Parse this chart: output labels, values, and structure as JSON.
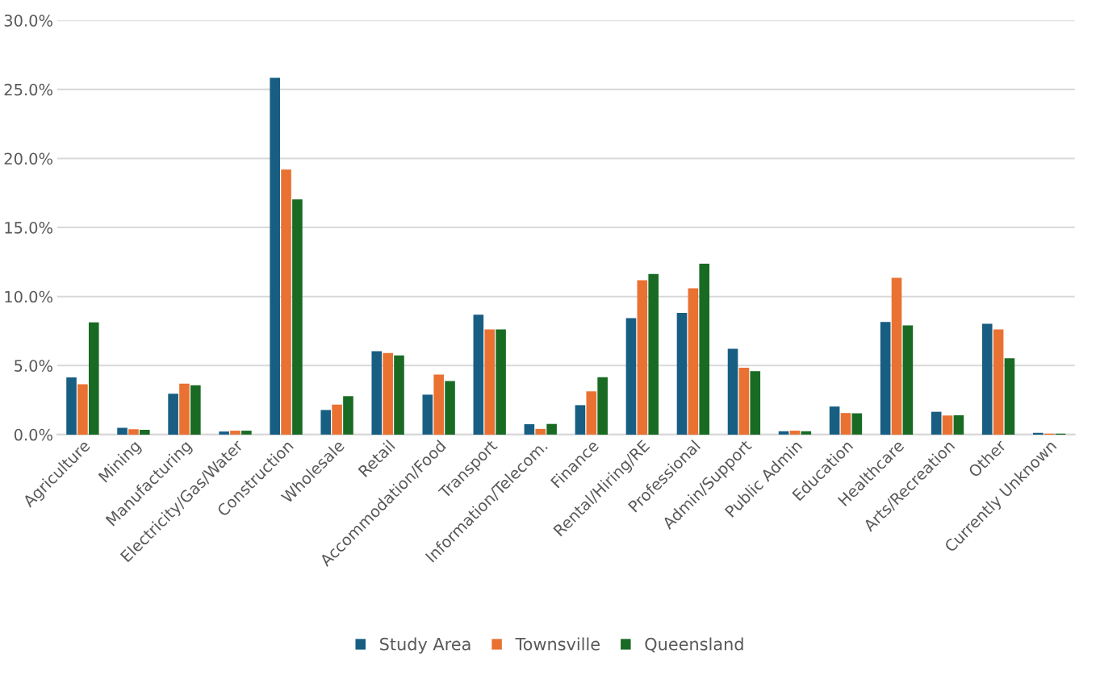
{
  "chart_data": {
    "type": "bar",
    "categories": [
      "Agriculture",
      "Mining",
      "Manufacturing",
      "Electricity/Gas/Water",
      "Construction",
      "Wholesale",
      "Retail",
      "Accommodation/Food",
      "Transport",
      "Information/Telecom.",
      "Finance",
      "Rental/Hiring/RE",
      "Professional",
      "Admin/Support",
      "Public Admin",
      "Education",
      "Healthcare",
      "Arts/Recreation",
      "Other",
      "Currently Unknown"
    ],
    "series": [
      {
        "name": "Study Area",
        "color": "#175e82",
        "values": [
          4.14,
          0.49,
          2.96,
          0.22,
          25.84,
          1.78,
          6.04,
          2.89,
          8.68,
          0.75,
          2.13,
          8.43,
          8.82,
          6.22,
          0.24,
          2.03,
          8.15,
          1.65,
          8.03,
          0.12
        ]
      },
      {
        "name": "Townsville",
        "color": "#e97132",
        "values": [
          3.65,
          0.39,
          3.69,
          0.28,
          19.2,
          2.17,
          5.91,
          4.35,
          7.62,
          0.41,
          3.13,
          11.18,
          10.59,
          4.84,
          0.28,
          1.56,
          11.36,
          1.38,
          7.62,
          0.06
        ]
      },
      {
        "name": "Queensland",
        "color": "#196b24",
        "values": [
          8.13,
          0.34,
          3.57,
          0.28,
          17.04,
          2.78,
          5.73,
          3.88,
          7.62,
          0.77,
          4.15,
          11.63,
          12.38,
          4.59,
          0.24,
          1.54,
          7.91,
          1.4,
          5.53,
          0.06
        ]
      }
    ],
    "ylim": [
      0,
      30
    ],
    "yticks": [
      {
        "value": 0,
        "label": "0.0%"
      },
      {
        "value": 5,
        "label": "5.0%"
      },
      {
        "value": 10,
        "label": "10.0%"
      },
      {
        "value": 15,
        "label": "15.0%"
      },
      {
        "value": 20,
        "label": "20.0%"
      },
      {
        "value": 25,
        "label": "25.0%"
      },
      {
        "value": 30,
        "label": "30.0%"
      }
    ],
    "grid": "y",
    "legend": "bottom"
  }
}
